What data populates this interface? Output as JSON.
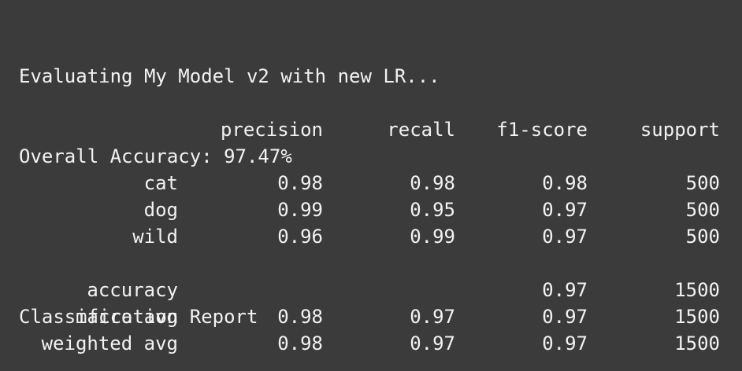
{
  "terminal": {
    "line1": "Evaluating My Model v2 with new LR...",
    "line2": "Overall Accuracy: 97.47%",
    "report_title": "Classification Report"
  },
  "report": {
    "headers": {
      "precision": "precision",
      "recall": "recall",
      "f1": "f1-score",
      "support": "support"
    },
    "rows": {
      "cat": {
        "label": "cat",
        "precision": "0.98",
        "recall": "0.98",
        "f1": "0.98",
        "support": "500"
      },
      "dog": {
        "label": "dog",
        "precision": "0.99",
        "recall": "0.95",
        "f1": "0.97",
        "support": "500"
      },
      "wild": {
        "label": "wild",
        "precision": "0.96",
        "recall": "0.99",
        "f1": "0.97",
        "support": "500"
      },
      "accuracy": {
        "label": "accuracy",
        "precision": "",
        "recall": "",
        "f1": "0.97",
        "support": "1500"
      },
      "macro": {
        "label": "macro avg",
        "precision": "0.98",
        "recall": "0.97",
        "f1": "0.97",
        "support": "1500"
      },
      "weighted": {
        "label": "weighted avg",
        "precision": "0.98",
        "recall": "0.97",
        "f1": "0.97",
        "support": "1500"
      }
    }
  },
  "colors": {
    "background": "#3b3b3b",
    "text": "#f2f2f2"
  }
}
